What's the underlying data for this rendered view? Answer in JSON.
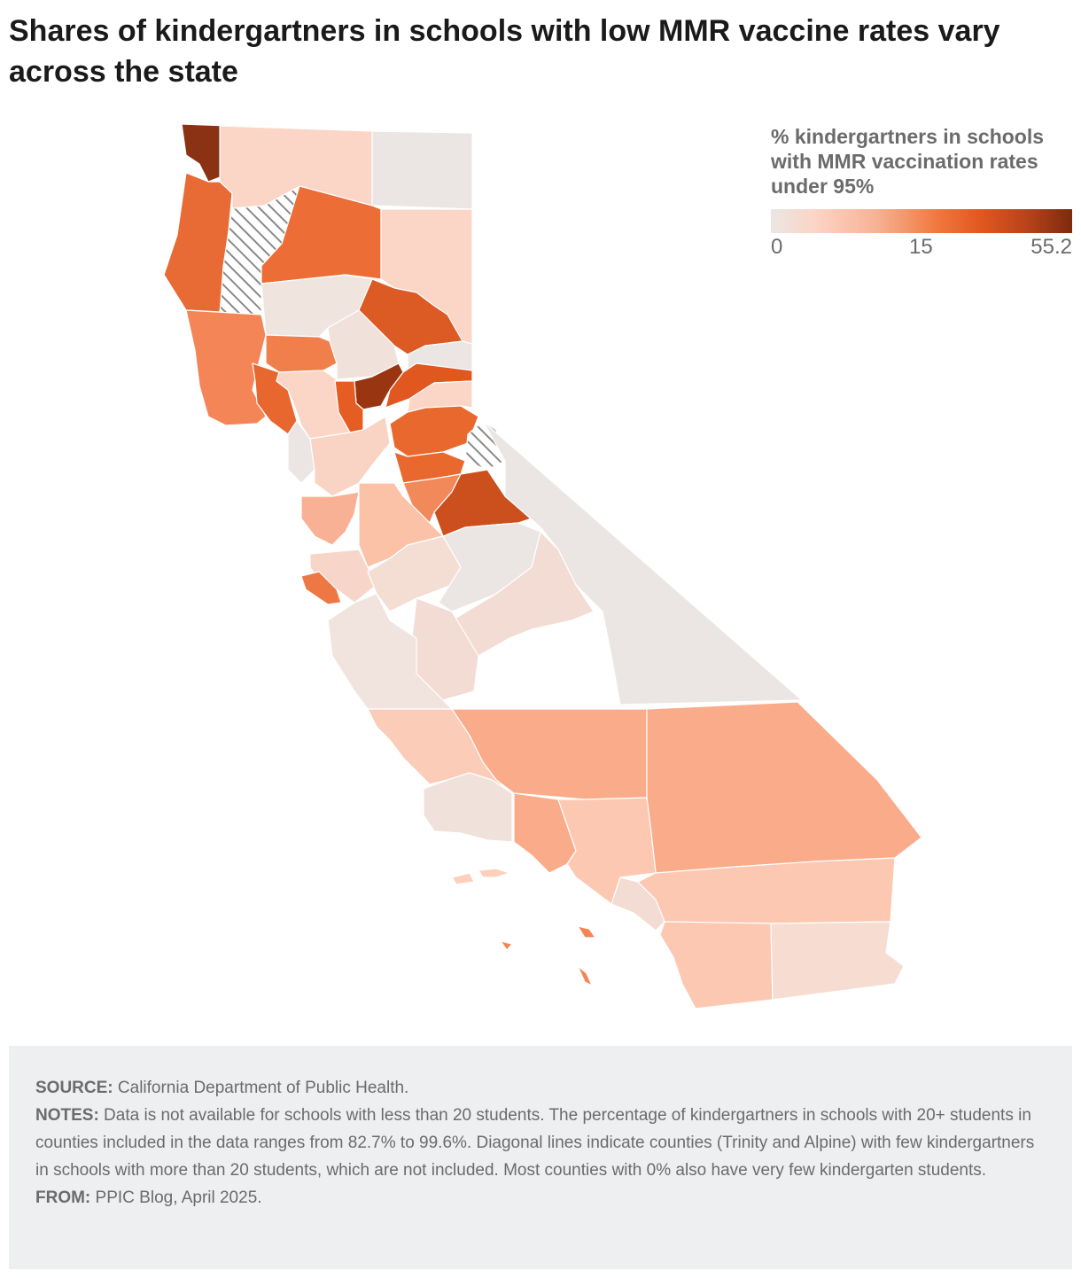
{
  "title": "Shares of kindergartners in schools with low MMR vaccine rates vary across the state",
  "legend": {
    "title": "% kindergartners in schools with MMR vaccination rates under 95%",
    "ticks": [
      "0",
      "15",
      "55.2"
    ],
    "scale_colors": [
      "#ebe6e4",
      "#fcd4c4",
      "#f7b296",
      "#f0793f",
      "#e0571f",
      "#b8431a",
      "#7d2a0e"
    ]
  },
  "map": {
    "no_data_pattern": "diagonal-hatch",
    "no_data_color": "#c8c8c8",
    "border_color": "#ffffff",
    "regions": [
      {
        "id": "northwest-tip",
        "fill": "#8b3214"
      },
      {
        "id": "north-coast",
        "fill": "#e86a35"
      },
      {
        "id": "hatched-north",
        "fill": "hatch"
      },
      {
        "id": "north-central-a",
        "fill": "#fbd5c6"
      },
      {
        "id": "northeast-corner",
        "fill": "#ebe6e4"
      },
      {
        "id": "north-interior",
        "fill": "#ec6d36"
      },
      {
        "id": "northeast-strip",
        "fill": "#fbd5c6"
      },
      {
        "id": "sacramento-valley-n",
        "fill": "#f0e4df"
      },
      {
        "id": "sierra-north",
        "fill": "#dc5a24"
      },
      {
        "id": "coast-north-2",
        "fill": "#f48556"
      },
      {
        "id": "valley-west",
        "fill": "#f07f4c"
      },
      {
        "id": "valley-center",
        "fill": "#f1e1db"
      },
      {
        "id": "small-gray-ne",
        "fill": "#ebe6e4"
      },
      {
        "id": "dark-sierra",
        "fill": "#9a3512"
      },
      {
        "id": "sierra-orange",
        "fill": "#e0581f"
      },
      {
        "id": "sierra-light",
        "fill": "#fbd5c6"
      },
      {
        "id": "coast-orange-2",
        "fill": "#e8672f"
      },
      {
        "id": "delta-orange",
        "fill": "#e65d24"
      },
      {
        "id": "bay-pale",
        "fill": "#fbd5c6"
      },
      {
        "id": "bay-gray",
        "fill": "#ebe6e4"
      },
      {
        "id": "central-pale",
        "fill": "#f9d3c4"
      },
      {
        "id": "sierra-mid-orange",
        "fill": "#e8682e"
      },
      {
        "id": "hatched-sierra",
        "fill": "hatch"
      },
      {
        "id": "sierra-orange-2",
        "fill": "#e8682e"
      },
      {
        "id": "sierra-salmon",
        "fill": "#f2895b"
      },
      {
        "id": "sierra-dark-2",
        "fill": "#cc4f1e"
      },
      {
        "id": "inyo-gray",
        "fill": "#ebe6e4"
      },
      {
        "id": "bay-salmon",
        "fill": "#f8b194"
      },
      {
        "id": "valley-salmon",
        "fill": "#fbc2a8"
      },
      {
        "id": "bay-south-pale",
        "fill": "#f7d6c9"
      },
      {
        "id": "bay-orange",
        "fill": "#ee7844"
      },
      {
        "id": "central-valley-pale",
        "fill": "#f4ddd3"
      },
      {
        "id": "central-gray",
        "fill": "#ebe6e4"
      },
      {
        "id": "tulare-pale",
        "fill": "#f3dcd3"
      },
      {
        "id": "kings-pale",
        "fill": "#f3dcd3"
      },
      {
        "id": "central-coast",
        "fill": "#f1e3dd"
      },
      {
        "id": "kern",
        "fill": "#f9ab8a"
      },
      {
        "id": "sb-coast",
        "fill": "#fbccb8"
      },
      {
        "id": "ventura-pale",
        "fill": "#f1e1db"
      },
      {
        "id": "la-orange",
        "fill": "#f9ab8a"
      },
      {
        "id": "san-bernardino",
        "fill": "#f9ab8a"
      },
      {
        "id": "la-light",
        "fill": "#fcc8b2"
      },
      {
        "id": "orange-co",
        "fill": "#f3dcd3"
      },
      {
        "id": "riverside",
        "fill": "#fcc8b2"
      },
      {
        "id": "san-diego",
        "fill": "#fcc8b2"
      },
      {
        "id": "imperial",
        "fill": "#f7dcd2"
      },
      {
        "id": "island-1",
        "fill": "#fcd0bd"
      },
      {
        "id": "island-2",
        "fill": "#fcd0bd"
      },
      {
        "id": "island-3",
        "fill": "#f48556"
      },
      {
        "id": "island-4",
        "fill": "#f48556"
      },
      {
        "id": "island-5",
        "fill": "#f48556"
      }
    ]
  },
  "footer": {
    "source_label": "SOURCE:",
    "source_text": " California Department of Public Health.",
    "notes_label": "NOTES:",
    "notes_text": " Data is not available for schools with less than 20 students. The percentage of kindergartners in schools with 20+ students in counties included in the data ranges from 82.7% to 99.6%. Diagonal lines indicate counties (Trinity and Alpine) with few kindergartners in schools with more than 20 students, which are not included. Most counties with 0% also have very few kindergarten students.",
    "from_label": "FROM:",
    "from_text": " PPIC Blog, April 2025."
  }
}
